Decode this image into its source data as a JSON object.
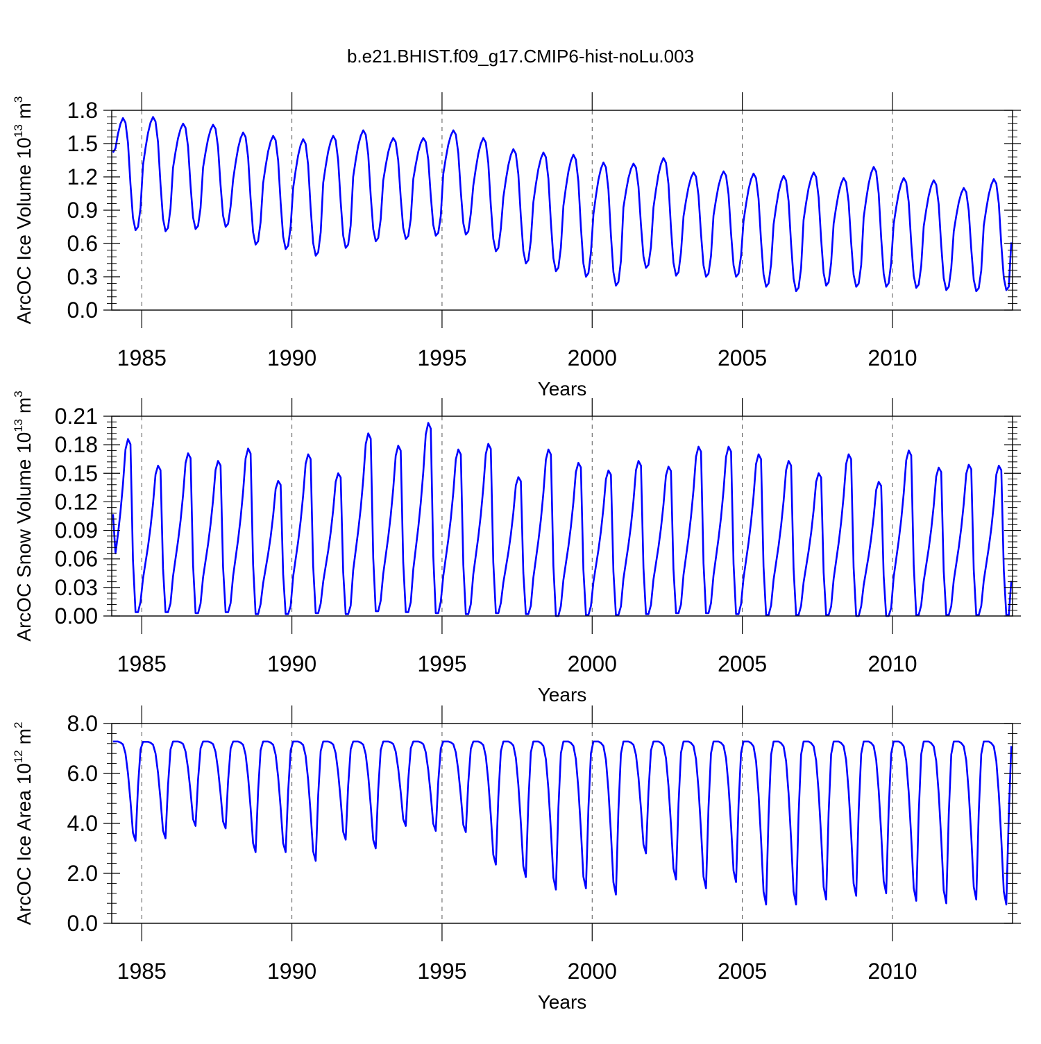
{
  "title": "b.e21.BHIST.f09_g17.CMIP6-hist-noLu.003",
  "chart_data": [
    {
      "type": "line",
      "name": "ice-volume",
      "ylabel": {
        "main": "ArcOC Ice Volume 10",
        "exp": "13",
        "unit": " m",
        "unitexp": "3"
      },
      "xlabel": "Years",
      "xlim": [
        1984.0,
        2014.0
      ],
      "ylim": [
        0.0,
        1.8
      ],
      "yticks": [
        "0.0",
        "0.3",
        "0.6",
        "0.9",
        "1.2",
        "1.5",
        "1.8"
      ],
      "xticks": [
        "1985",
        "1990",
        "1995",
        "2000",
        "2005",
        "2010"
      ],
      "line_color": "#0000ff",
      "annual_max": [
        1.73,
        1.74,
        1.68,
        1.67,
        1.6,
        1.57,
        1.54,
        1.57,
        1.62,
        1.55,
        1.55,
        1.62,
        1.55,
        1.45,
        1.42,
        1.4,
        1.33,
        1.32,
        1.37,
        1.24,
        1.25,
        1.23,
        1.21,
        1.24,
        1.19,
        1.29,
        1.19,
        1.17,
        1.1,
        1.18
      ],
      "annual_min": [
        0.72,
        0.71,
        0.73,
        0.75,
        0.59,
        0.55,
        0.49,
        0.56,
        0.62,
        0.64,
        0.67,
        0.68,
        0.53,
        0.42,
        0.35,
        0.3,
        0.22,
        0.38,
        0.31,
        0.3,
        0.3,
        0.21,
        0.17,
        0.22,
        0.21,
        0.21,
        0.2,
        0.18,
        0.17,
        0.18
      ],
      "start_value": 1.42,
      "end_value": 0.61
    },
    {
      "type": "line",
      "name": "snow-volume",
      "ylabel": {
        "main": "ArcOC Snow Volume 10",
        "exp": "13",
        "unit": " m",
        "unitexp": "3"
      },
      "xlabel": "Years",
      "xlim": [
        1984.0,
        2014.0
      ],
      "ylim": [
        0.0,
        0.21
      ],
      "yticks": [
        "0.00",
        "0.03",
        "0.06",
        "0.09",
        "0.12",
        "0.15",
        "0.18",
        "0.21"
      ],
      "xticks": [
        "1985",
        "1990",
        "1995",
        "2000",
        "2005",
        "2010"
      ],
      "line_color": "#0000ff",
      "annual_max": [
        0.186,
        0.158,
        0.171,
        0.163,
        0.176,
        0.142,
        0.17,
        0.15,
        0.192,
        0.179,
        0.203,
        0.175,
        0.181,
        0.146,
        0.175,
        0.161,
        0.153,
        0.163,
        0.157,
        0.178,
        0.178,
        0.17,
        0.163,
        0.15,
        0.17,
        0.141,
        0.174,
        0.156,
        0.159,
        0.158
      ],
      "annual_min": [
        0.004,
        0.004,
        0.003,
        0.004,
        0.002,
        0.002,
        0.003,
        0.002,
        0.005,
        0.004,
        0.003,
        0.002,
        0.003,
        0.002,
        0.0,
        0.001,
        0.001,
        0.002,
        0.003,
        0.003,
        0.002,
        0.001,
        0.001,
        0.001,
        0.0,
        0.0,
        0.001,
        0.001,
        0.001,
        0.001
      ],
      "start_value": 0.107,
      "end_value": 0.037
    },
    {
      "type": "line",
      "name": "ice-area",
      "ylabel": {
        "main": "ArcOC Ice Area 10",
        "exp": "12",
        "unit": " m",
        "unitexp": "2"
      },
      "xlabel": "Years",
      "xlim": [
        1984.0,
        2014.0
      ],
      "ylim": [
        0.0,
        8.0
      ],
      "yticks": [
        "0.0",
        "2.0",
        "4.0",
        "6.0",
        "8.0"
      ],
      "xticks": [
        "1985",
        "1990",
        "1995",
        "2000",
        "2005",
        "2010"
      ],
      "line_color": "#0000ff",
      "annual_max": [
        7.28,
        7.27,
        7.28,
        7.28,
        7.28,
        7.28,
        7.28,
        7.28,
        7.28,
        7.28,
        7.28,
        7.28,
        7.28,
        7.28,
        7.28,
        7.28,
        7.28,
        7.28,
        7.28,
        7.28,
        7.28,
        7.28,
        7.28,
        7.28,
        7.28,
        7.28,
        7.28,
        7.28,
        7.28,
        7.28
      ],
      "annual_min": [
        3.3,
        3.4,
        3.9,
        3.8,
        2.85,
        2.85,
        2.5,
        3.35,
        3.0,
        3.9,
        3.7,
        3.65,
        2.35,
        1.85,
        1.35,
        1.4,
        1.15,
        2.8,
        1.75,
        1.4,
        1.65,
        0.75,
        0.75,
        0.95,
        1.1,
        1.2,
        0.9,
        0.8,
        0.95,
        0.75
      ],
      "start_value": 7.28,
      "end_value": 7.1
    }
  ]
}
